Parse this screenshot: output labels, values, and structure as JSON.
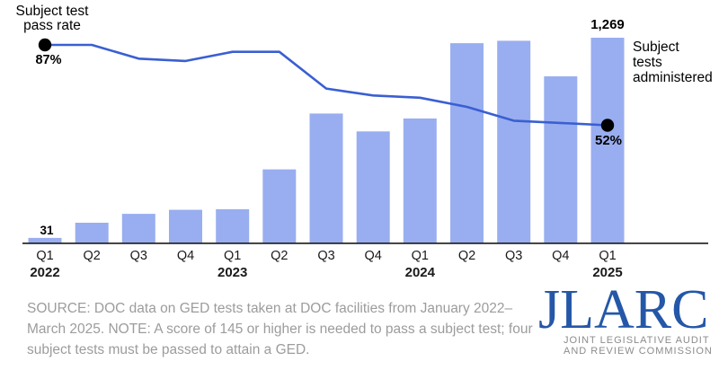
{
  "chart": {
    "pass_rate_label": "Subject test\npass rate",
    "start_pct_label": "87%",
    "end_pct_label": "52%",
    "first_bar_label": "31",
    "last_bar_label": "1,269",
    "administered_label": "Subject\ntests\nadministered"
  },
  "chart_data": {
    "type": "combo-bar-line",
    "categories": [
      "Q1",
      "Q2",
      "Q3",
      "Q4",
      "Q1",
      "Q2",
      "Q3",
      "Q4",
      "Q1",
      "Q2",
      "Q3",
      "Q4",
      "Q1"
    ],
    "years": [
      {
        "index": 0,
        "label": "2022"
      },
      {
        "index": 4,
        "label": "2023"
      },
      {
        "index": 8,
        "label": "2024"
      },
      {
        "index": 12,
        "label": "2025"
      }
    ],
    "series": [
      {
        "name": "Subject tests administered",
        "type": "bar",
        "color": "#99AEF0",
        "values": [
          31,
          125,
          180,
          205,
          208,
          455,
          800,
          690,
          770,
          1235,
          1250,
          1030,
          1269
        ]
      },
      {
        "name": "Subject test pass rate",
        "type": "line",
        "color": "#3A5FD2",
        "unit": "%",
        "values": [
          87,
          87,
          81,
          80,
          84,
          84,
          68,
          65,
          64,
          60,
          54,
          53,
          52
        ]
      }
    ],
    "bar_axis_range": [
      0,
      1269
    ],
    "line_axis_range": [
      52,
      87
    ],
    "grid": false,
    "legend": "direct-labels",
    "labeled_points": {
      "first_bar": 31,
      "last_bar": 1269,
      "first_line_pct": 87,
      "last_line_pct": 52
    }
  },
  "footer": {
    "source_note": "SOURCE: DOC data on GED tests taken at DOC facilities from January 2022–March 2025. NOTE: A score of 145 or higher is needed to pass a subject test; four subject tests must be passed to attain a GED.",
    "logo": {
      "acronym": "JLARC",
      "tagline": "JOINT LEGISLATIVE AUDIT\nAND REVIEW COMMISSION"
    }
  },
  "colors": {
    "background": "#FFFFFF",
    "bar_fill": "#99AEF0",
    "line_stroke": "#3A5FD2",
    "endpoint_dot": "#000000",
    "axis_line": "#1A1A1A",
    "axis_text": "#1A1A1A",
    "source_text": "#9C9C9C",
    "logo_blue": "#2557A8",
    "logo_gray": "#8C8C8C"
  }
}
